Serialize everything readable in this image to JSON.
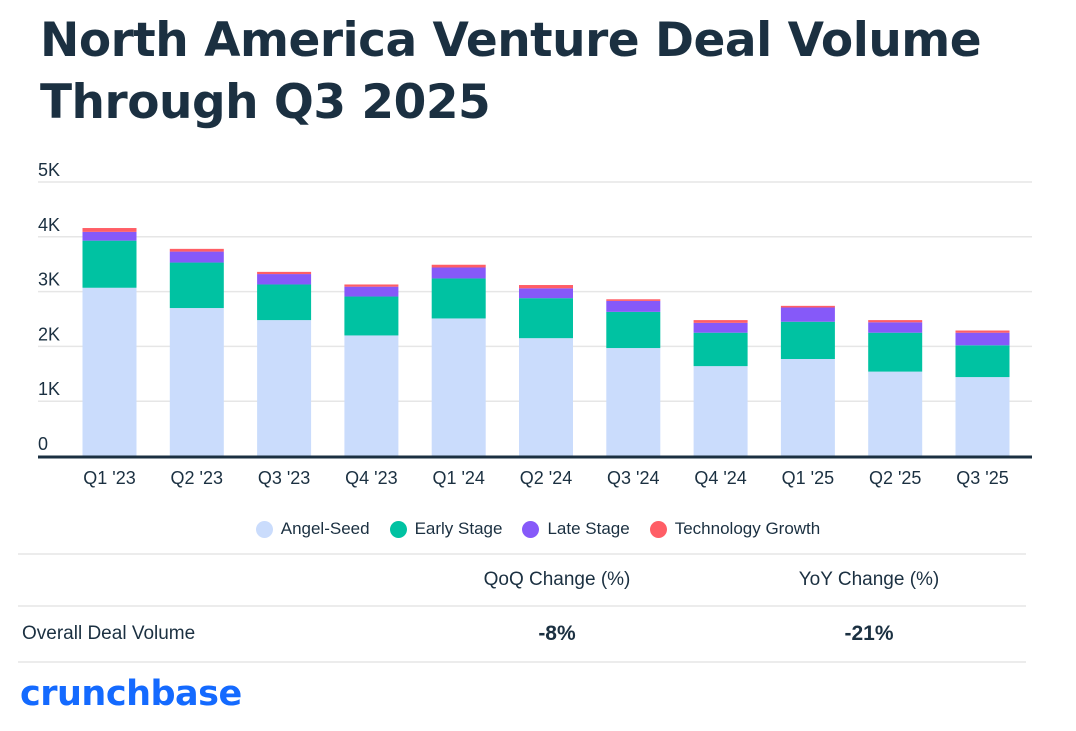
{
  "title": "North America Venture Deal Volume Through Q3 2025",
  "title_lines": [
    "North America Venture Deal Volume",
    "Through Q3 2025"
  ],
  "chart_data": {
    "type": "bar",
    "stacked": true,
    "title": "North America Venture Deal Volume Through Q3 2025",
    "xlabel": "",
    "ylabel": "",
    "ylim": [
      0,
      5000
    ],
    "yticks": [
      0,
      1000,
      2000,
      3000,
      4000,
      5000
    ],
    "ytick_labels": [
      "0",
      "1K",
      "2K",
      "3K",
      "4K",
      "5K"
    ],
    "grid": true,
    "legend_position": "bottom-center",
    "categories": [
      "Q1 '23",
      "Q2 '23",
      "Q3 '23",
      "Q4 '23",
      "Q1 '24",
      "Q2 '24",
      "Q3 '24",
      "Q4 '24",
      "Q1 '25",
      "Q2 '25",
      "Q3 '25"
    ],
    "series": [
      {
        "name": "Angel-Seed",
        "color": "#cadcfc",
        "values": [
          3070,
          2700,
          2480,
          2200,
          2510,
          2150,
          1970,
          1640,
          1770,
          1540,
          1440
        ]
      },
      {
        "name": "Early Stage",
        "color": "#00c2a2",
        "values": [
          860,
          830,
          650,
          710,
          730,
          730,
          660,
          610,
          680,
          710,
          580
        ]
      },
      {
        "name": "Late Stage",
        "color": "#8659f9",
        "values": [
          160,
          200,
          190,
          180,
          200,
          180,
          200,
          180,
          260,
          190,
          230
        ]
      },
      {
        "name": "Technology Growth",
        "color": "#ff5e66",
        "values": [
          70,
          50,
          40,
          40,
          50,
          60,
          30,
          50,
          30,
          40,
          40
        ]
      }
    ]
  },
  "table": {
    "headers": [
      "",
      "QoQ Change (%)",
      "YoY Change (%)"
    ],
    "rows": [
      {
        "label": "Overall Deal Volume",
        "qoq": "-8%",
        "yoy": "-21%"
      }
    ]
  },
  "brand": {
    "name": "crunchbase",
    "color": "#146aff"
  }
}
